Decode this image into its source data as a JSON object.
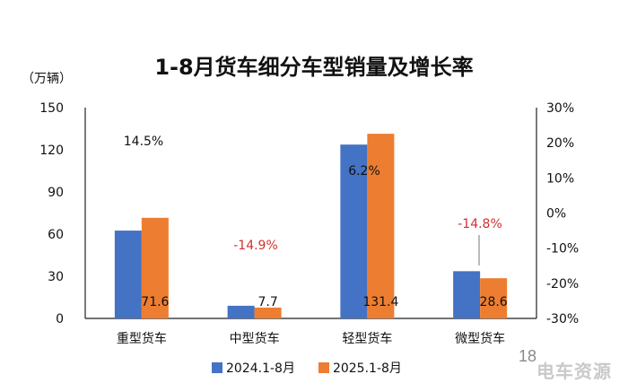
{
  "colors": {
    "series_2024": "#4472C4",
    "series_2025": "#ED7D31",
    "pct_positive": "#111111",
    "pct_negative": "#D0312D"
  },
  "page_number": "18",
  "watermark": "电车资源",
  "chart_data": {
    "type": "bar",
    "title": "1-8月货车细分车型销量及增长率",
    "ylabel": "（万辆）",
    "ylim": [
      0,
      150
    ],
    "yticks": [
      "0",
      "30",
      "60",
      "90",
      "120",
      "150"
    ],
    "y2lim": [
      -0.3,
      0.3
    ],
    "y2ticks": [
      "-30%",
      "-20%",
      "-10%",
      "0%",
      "10%",
      "20%",
      "30%"
    ],
    "categories": [
      "重型货车",
      "中型货车",
      "轻型货车",
      "微型货车"
    ],
    "series": [
      {
        "name": "2024.1-8月",
        "values": [
          62.5,
          9.0,
          123.7,
          33.6
        ]
      },
      {
        "name": "2025.1-8月",
        "values": [
          71.6,
          7.7,
          131.4,
          28.6
        ]
      }
    ],
    "value_labels": [
      "71.6",
      "7.7",
      "131.4",
      "28.6"
    ],
    "growth_labels": [
      "14.5%",
      "-14.9%",
      "6.2%",
      "-14.8%"
    ],
    "growth_values": [
      0.145,
      -0.149,
      0.062,
      -0.148
    ],
    "legend_position": "bottom",
    "grid": false
  }
}
